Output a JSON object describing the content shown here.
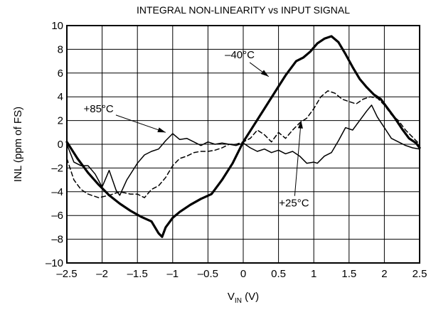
{
  "chart_data": {
    "type": "line",
    "title": "INTEGRAL NON-LINEARITY vs INPUT SIGNAL",
    "xlabel": {
      "main": "V",
      "sub": "IN",
      "unit": " (V)"
    },
    "ylabel": "INL (ppm of FS)",
    "xlim": [
      -2.5,
      2.5
    ],
    "ylim": [
      -10,
      10
    ],
    "xticks": [
      -2.5,
      -2,
      -1.5,
      -1,
      -0.5,
      0,
      0.5,
      1,
      1.5,
      2,
      2.5
    ],
    "xtick_labels": [
      "–2.5",
      "–2",
      "–1.5",
      "–1",
      "–0.5",
      "0",
      "0.5",
      "1",
      "1.5",
      "2",
      "2.5"
    ],
    "yticks": [
      -10,
      -8,
      -6,
      -4,
      -2,
      0,
      2,
      4,
      6,
      8,
      10
    ],
    "ytick_labels": [
      "–10",
      "–8",
      "–6",
      "–4",
      "–2",
      "0",
      "2",
      "4",
      "6",
      "8",
      "10"
    ],
    "grid": true,
    "series": [
      {
        "name": "–40°C",
        "style": "thick",
        "x": [
          -2.5,
          -2.35,
          -2.2,
          -2.05,
          -1.9,
          -1.75,
          -1.6,
          -1.45,
          -1.3,
          -1.2,
          -1.15,
          -1.1,
          -1.0,
          -0.9,
          -0.75,
          -0.6,
          -0.45,
          -0.3,
          -0.15,
          0.0,
          0.15,
          0.3,
          0.45,
          0.6,
          0.75,
          0.85,
          0.95,
          1.05,
          1.15,
          1.25,
          1.35,
          1.45,
          1.55,
          1.65,
          1.75,
          1.85,
          1.95,
          2.05,
          2.15,
          2.25,
          2.35,
          2.45,
          2.5
        ],
        "y": [
          0.2,
          -1.2,
          -2.4,
          -3.4,
          -4.3,
          -5.0,
          -5.6,
          -6.1,
          -6.5,
          -7.5,
          -7.8,
          -7.0,
          -6.2,
          -5.7,
          -5.1,
          -4.6,
          -4.2,
          -3.0,
          -1.6,
          0.2,
          1.6,
          3.0,
          4.4,
          5.8,
          7.0,
          7.3,
          7.8,
          8.5,
          8.9,
          9.1,
          8.6,
          7.6,
          6.5,
          5.5,
          4.8,
          4.2,
          3.8,
          3.0,
          2.2,
          1.3,
          0.5,
          0.1,
          -0.3
        ]
      },
      {
        "name": "+25°C",
        "style": "dashed",
        "x": [
          -2.5,
          -2.4,
          -2.3,
          -2.2,
          -2.05,
          -1.9,
          -1.75,
          -1.6,
          -1.5,
          -1.4,
          -1.3,
          -1.2,
          -1.1,
          -1.0,
          -0.9,
          -0.8,
          -0.7,
          -0.6,
          -0.5,
          -0.4,
          -0.3,
          -0.2,
          -0.1,
          0.0,
          0.1,
          0.2,
          0.3,
          0.4,
          0.5,
          0.6,
          0.7,
          0.8,
          0.9,
          1.0,
          1.1,
          1.2,
          1.3,
          1.4,
          1.5,
          1.6,
          1.7,
          1.8,
          1.9,
          2.0,
          2.1,
          2.2,
          2.3,
          2.4,
          2.5
        ],
        "y": [
          -1.2,
          -3.0,
          -3.8,
          -4.2,
          -4.5,
          -4.3,
          -4.0,
          -4.2,
          -4.2,
          -4.5,
          -3.8,
          -3.5,
          -2.8,
          -1.8,
          -1.2,
          -1.0,
          -0.7,
          -0.6,
          -0.6,
          -0.5,
          -0.3,
          0.0,
          0.0,
          0.2,
          0.5,
          1.2,
          0.8,
          0.2,
          1.0,
          0.5,
          1.2,
          1.8,
          2.2,
          3.0,
          4.0,
          4.5,
          4.3,
          3.8,
          3.6,
          3.4,
          3.8,
          4.0,
          3.9,
          3.3,
          2.5,
          2.0,
          1.2,
          0.6,
          0.0
        ]
      },
      {
        "name": "+85°C",
        "style": "thin",
        "x": [
          -2.5,
          -2.4,
          -2.3,
          -2.2,
          -2.1,
          -2.0,
          -1.9,
          -1.8,
          -1.75,
          -1.65,
          -1.5,
          -1.4,
          -1.3,
          -1.2,
          -1.1,
          -1.0,
          -0.9,
          -0.8,
          -0.7,
          -0.6,
          -0.5,
          -0.4,
          -0.3,
          -0.2,
          -0.1,
          0.0,
          0.1,
          0.2,
          0.3,
          0.4,
          0.5,
          0.6,
          0.7,
          0.8,
          0.9,
          1.0,
          1.05,
          1.15,
          1.25,
          1.35,
          1.45,
          1.55,
          1.65,
          1.75,
          1.82,
          1.9,
          2.0,
          2.1,
          2.2,
          2.3,
          2.4,
          2.5
        ],
        "y": [
          0.0,
          -1.5,
          -1.8,
          -1.8,
          -2.5,
          -3.6,
          -2.2,
          -3.9,
          -4.3,
          -3.0,
          -1.6,
          -0.9,
          -0.6,
          -0.4,
          0.3,
          0.9,
          0.4,
          0.5,
          0.2,
          -0.1,
          0.2,
          0.0,
          0.1,
          0.0,
          -0.1,
          0.1,
          -0.3,
          -0.6,
          -0.4,
          -0.7,
          -0.5,
          -0.8,
          -0.6,
          -1.0,
          -1.6,
          -1.5,
          -1.6,
          -1.0,
          -0.7,
          0.3,
          1.4,
          1.2,
          2.0,
          2.8,
          3.3,
          2.3,
          1.4,
          0.5,
          0.2,
          -0.1,
          -0.3,
          -0.4
        ]
      }
    ],
    "annotations": [
      {
        "text": "–40°C",
        "series": "–40°C",
        "label_x": -0.05,
        "label_y": 7.25,
        "arrow_x": 0.36,
        "arrow_y": 5.7
      },
      {
        "text": "+85°C",
        "series": "+85°C",
        "label_x": -2.05,
        "label_y": 2.7,
        "arrow_x": -1.1,
        "arrow_y": 1.0
      },
      {
        "text": "+25°C",
        "series": "+25°C",
        "label_x": 0.72,
        "label_y": -5.25,
        "arrow_x": 0.82,
        "arrow_y": 2.0
      }
    ]
  }
}
